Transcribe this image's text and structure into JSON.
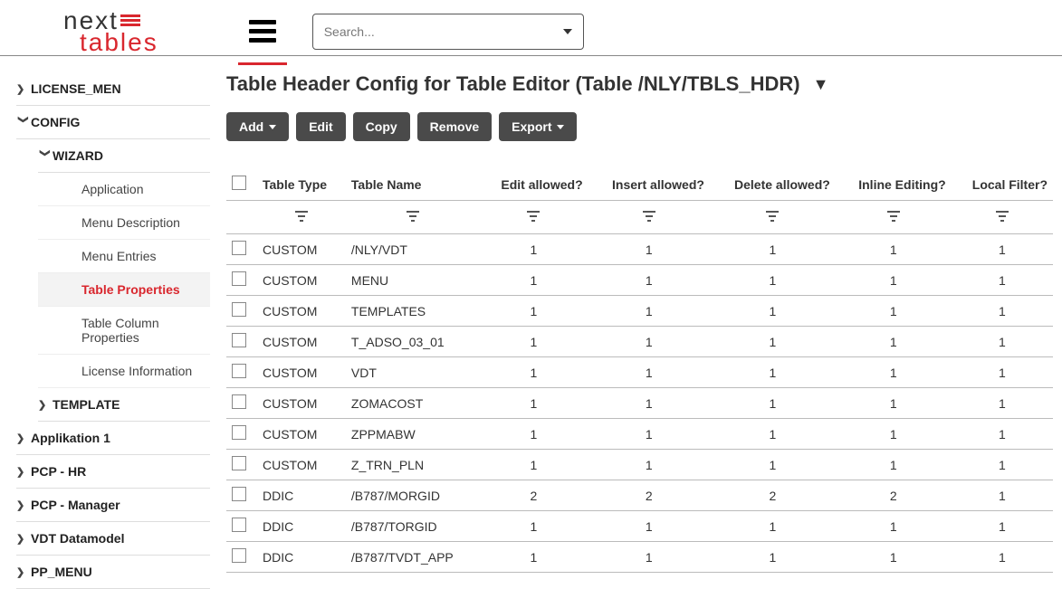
{
  "logo": {
    "line1": "next",
    "line2": "tables"
  },
  "search": {
    "placeholder": "Search..."
  },
  "sidebar": {
    "items": [
      {
        "label": "LICENSE_MEN",
        "expanded": false,
        "level": 0
      },
      {
        "label": "CONFIG",
        "expanded": true,
        "level": 0
      },
      {
        "label": "WIZARD",
        "expanded": true,
        "level": 1
      },
      {
        "label": "Application",
        "leaf": true
      },
      {
        "label": "Menu Description",
        "leaf": true
      },
      {
        "label": "Menu Entries",
        "leaf": true
      },
      {
        "label": "Table Properties",
        "leaf": true,
        "active": true
      },
      {
        "label": "Table Column Properties",
        "leaf": true
      },
      {
        "label": "License Information",
        "leaf": true
      },
      {
        "label": "TEMPLATE",
        "expanded": false,
        "level": 1
      },
      {
        "label": "Applikation 1",
        "expanded": false,
        "level": 0
      },
      {
        "label": "PCP - HR",
        "expanded": false,
        "level": 0
      },
      {
        "label": "PCP - Manager",
        "expanded": false,
        "level": 0
      },
      {
        "label": "VDT Datamodel",
        "expanded": false,
        "level": 0
      },
      {
        "label": "PP_MENU",
        "expanded": false,
        "level": 0
      }
    ]
  },
  "page": {
    "title": "Table Header Config for Table Editor (Table /NLY/TBLS_HDR)"
  },
  "toolbar": {
    "add": "Add",
    "edit": "Edit",
    "copy": "Copy",
    "remove": "Remove",
    "export": "Export"
  },
  "table": {
    "columns": [
      "Table Type",
      "Table Name",
      "Edit allowed?",
      "Insert allowed?",
      "Delete allowed?",
      "Inline Editing?",
      "Local Filter?"
    ],
    "rows": [
      [
        "CUSTOM",
        "/NLY/VDT",
        "1",
        "1",
        "1",
        "1",
        "1"
      ],
      [
        "CUSTOM",
        "MENU",
        "1",
        "1",
        "1",
        "1",
        "1"
      ],
      [
        "CUSTOM",
        "TEMPLATES",
        "1",
        "1",
        "1",
        "1",
        "1"
      ],
      [
        "CUSTOM",
        "T_ADSO_03_01",
        "1",
        "1",
        "1",
        "1",
        "1"
      ],
      [
        "CUSTOM",
        "VDT",
        "1",
        "1",
        "1",
        "1",
        "1"
      ],
      [
        "CUSTOM",
        "ZOMACOST",
        "1",
        "1",
        "1",
        "1",
        "1"
      ],
      [
        "CUSTOM",
        "ZPPMABW",
        "1",
        "1",
        "1",
        "1",
        "1"
      ],
      [
        "CUSTOM",
        "Z_TRN_PLN",
        "1",
        "1",
        "1",
        "1",
        "1"
      ],
      [
        "DDIC",
        "/B787/MORGID",
        "2",
        "2",
        "2",
        "2",
        "1"
      ],
      [
        "DDIC",
        "/B787/TORGID",
        "1",
        "1",
        "1",
        "1",
        "1"
      ],
      [
        "DDIC",
        "/B787/TVDT_APP",
        "1",
        "1",
        "1",
        "1",
        "1"
      ]
    ]
  }
}
